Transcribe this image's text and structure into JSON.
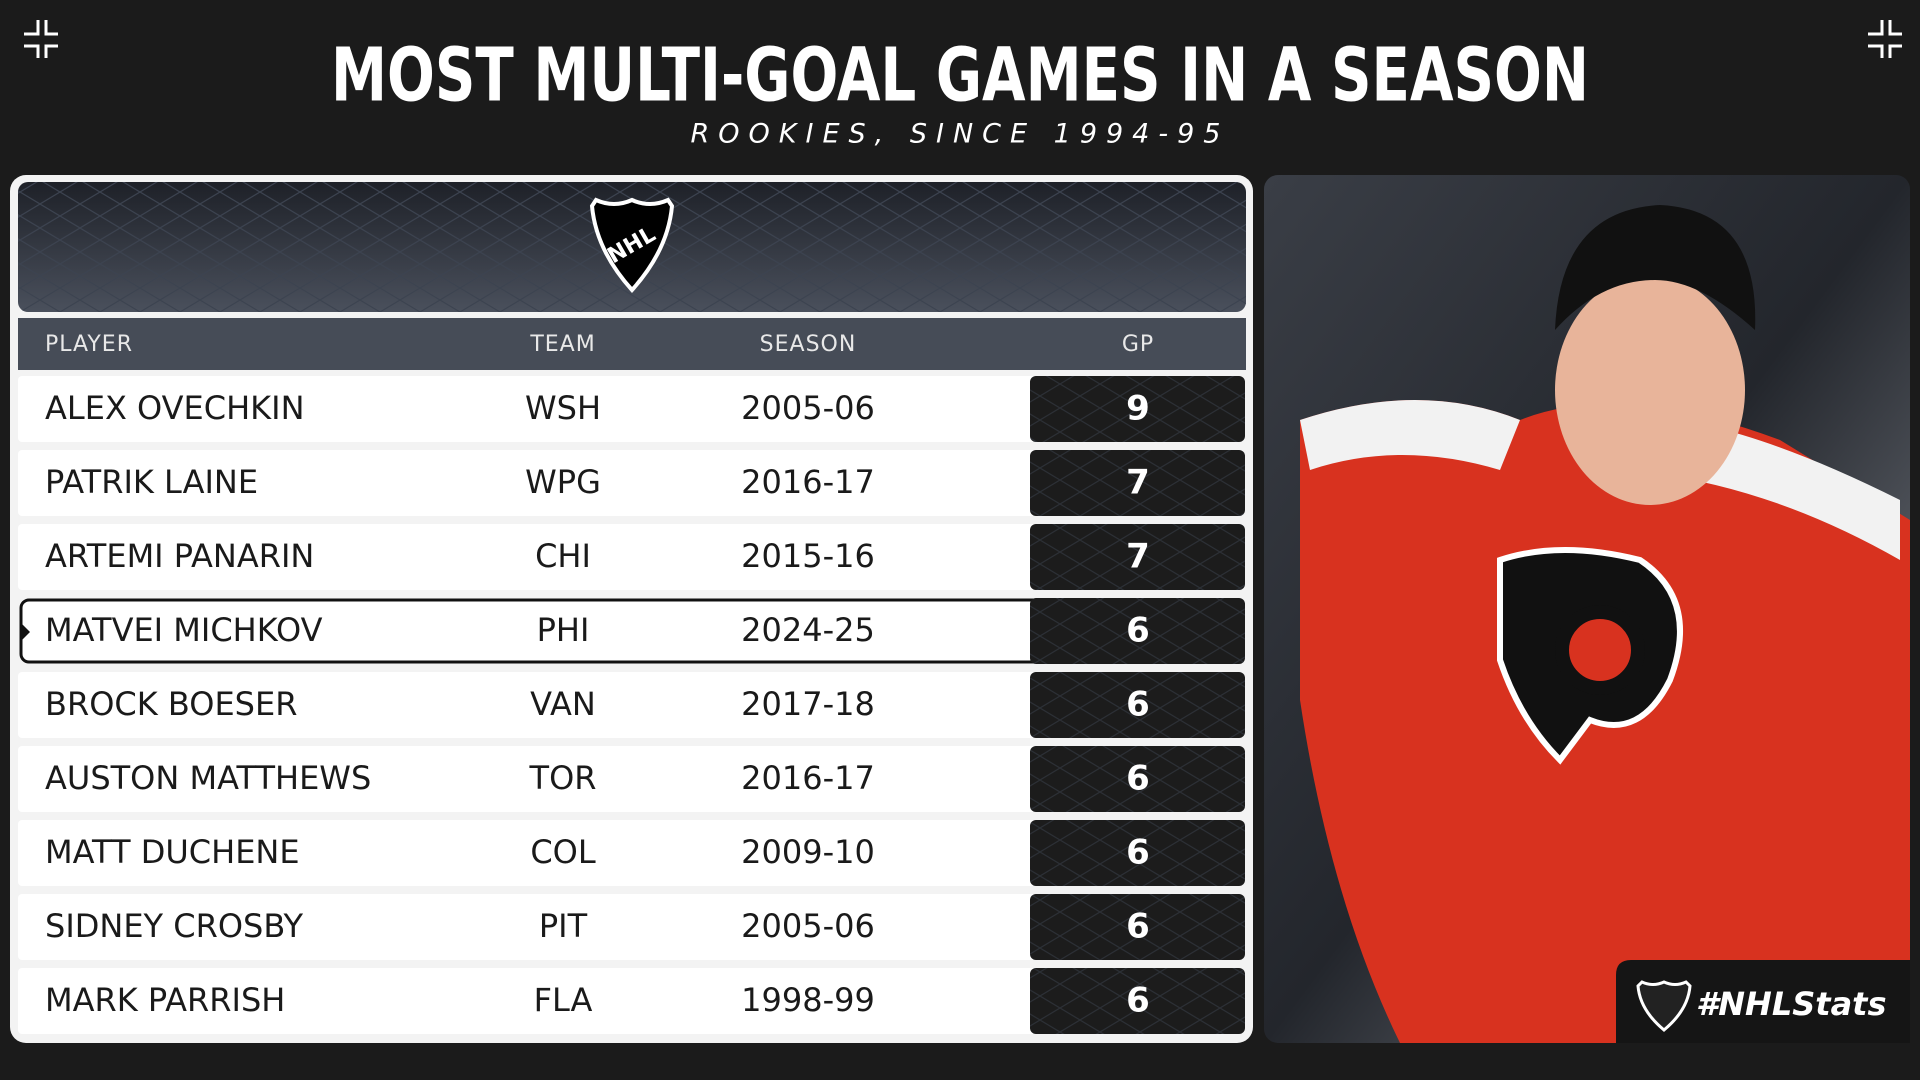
{
  "header": {
    "title": "MOST MULTI-GOAL GAMES IN A SEASON",
    "subtitle": "ROOKIES, SINCE 1994-95"
  },
  "logo": "NHL",
  "table": {
    "columns": [
      "PLAYER",
      "TEAM",
      "SEASON",
      "GP"
    ],
    "rows": [
      [
        "ALEX OVECHKIN",
        "WSH",
        "2005-06",
        9
      ],
      [
        "PATRIK LAINE",
        "WPG",
        "2016-17",
        7
      ],
      [
        "ARTEMI PANARIN",
        "CHI",
        "2015-16",
        7
      ],
      [
        "MATVEI MICHKOV",
        "PHI",
        "2024-25",
        6
      ],
      [
        "BROCK BOESER",
        "VAN",
        "2017-18",
        6
      ],
      [
        "AUSTON MATTHEWS",
        "TOR",
        "2016-17",
        6
      ],
      [
        "MATT DUCHENE",
        "COL",
        "2009-10",
        6
      ],
      [
        "SIDNEY CROSBY",
        "PIT",
        "2005-06",
        6
      ],
      [
        "MARK PARRISH",
        "FLA",
        "1998-99",
        6
      ]
    ],
    "highlight_row": 3
  },
  "hashtag": "#NHLStats"
}
